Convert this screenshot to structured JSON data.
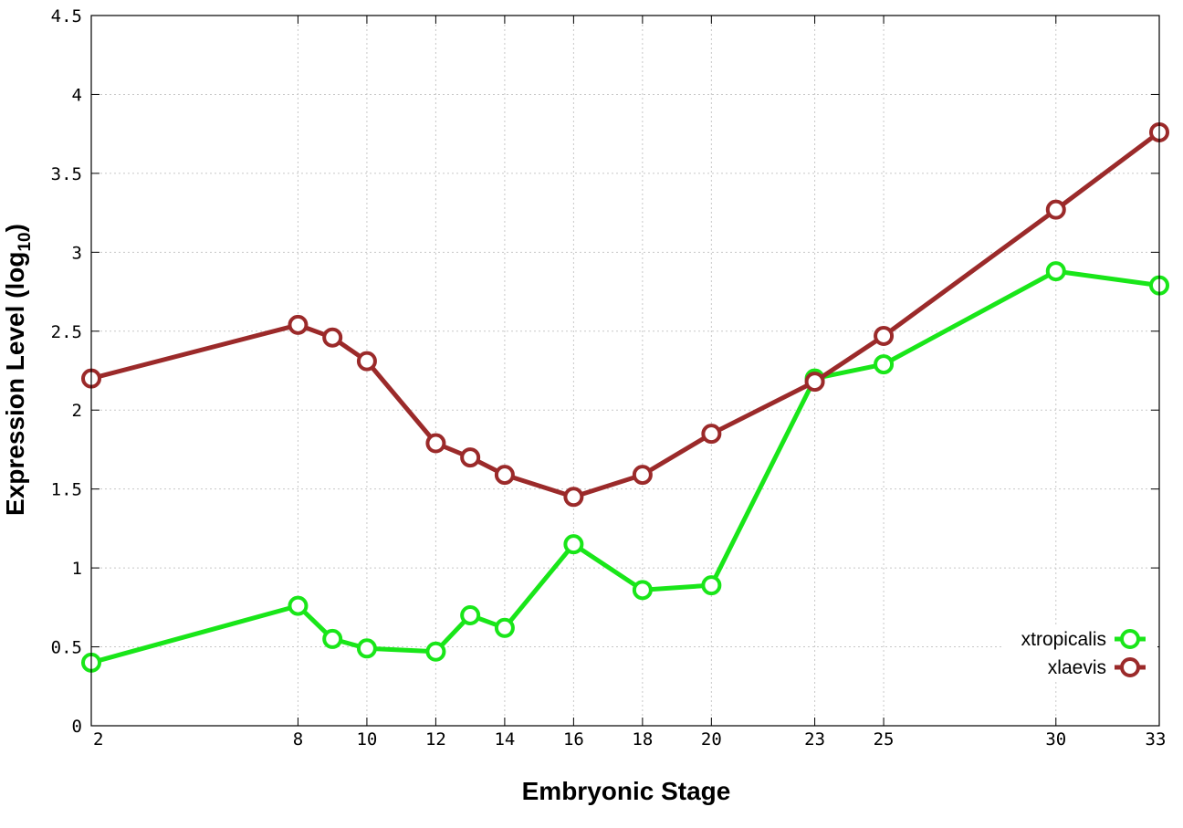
{
  "chart_data": {
    "type": "line",
    "xlabel": "Embryonic Stage",
    "ylabel": "Expression Level (log",
    "ylabel_sub": "10",
    "ylabel_close": ")",
    "x": [
      2,
      8,
      9,
      10,
      12,
      13,
      14,
      16,
      18,
      20,
      23,
      25,
      30,
      33
    ],
    "x_tick_labels": [
      "2",
      "8",
      "10",
      "12",
      "14",
      "16",
      "18",
      "20",
      "23",
      "25",
      "30",
      "33"
    ],
    "x_tick_values": [
      2,
      8,
      10,
      12,
      14,
      16,
      18,
      20,
      23,
      25,
      30,
      33
    ],
    "xlim": [
      2,
      33
    ],
    "y_tick_labels": [
      "0",
      "0.5",
      "1",
      "1.5",
      "2",
      "2.5",
      "3",
      "3.5",
      "4",
      "4.5"
    ],
    "y_tick_values": [
      0,
      0.5,
      1,
      1.5,
      2,
      2.5,
      3,
      3.5,
      4,
      4.5
    ],
    "ylim": [
      0,
      4.5
    ],
    "grid": true,
    "legend_position": "bottom-right",
    "series": [
      {
        "name": "xtropicalis",
        "color": "#19e619",
        "values": [
          0.4,
          0.76,
          0.55,
          0.49,
          0.47,
          0.7,
          0.62,
          1.15,
          0.86,
          0.89,
          2.2,
          2.29,
          2.88,
          2.79
        ]
      },
      {
        "name": "xlaevis",
        "color": "#9b2a2a",
        "values": [
          2.2,
          2.54,
          2.46,
          2.31,
          1.79,
          1.7,
          1.59,
          1.45,
          1.59,
          1.85,
          2.18,
          2.47,
          3.27,
          3.76
        ]
      }
    ]
  }
}
